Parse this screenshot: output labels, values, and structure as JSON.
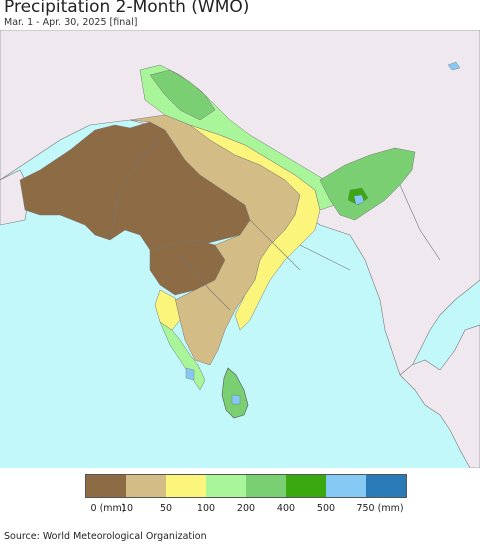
{
  "header": {
    "title": "Precipitation 2-Month (WMO)",
    "subtitle": "Mar. 1 - Apr. 30, 2025 [final]"
  },
  "legend": {
    "colors": [
      "#8c6b45",
      "#d4bc86",
      "#fbf57c",
      "#a9f59a",
      "#79cf72",
      "#3aa80f",
      "#86c9f5",
      "#2b7ab8"
    ],
    "labels": [
      "0 (mm)",
      "10",
      "50",
      "100",
      "200",
      "400",
      "500",
      "750 (mm)"
    ]
  },
  "footer": {
    "source": "Source: World Meteorological Organization"
  },
  "map_colors": {
    "ocean": "#c3f8fb",
    "land_outside": "#efe9ef",
    "border": "#666666"
  }
}
